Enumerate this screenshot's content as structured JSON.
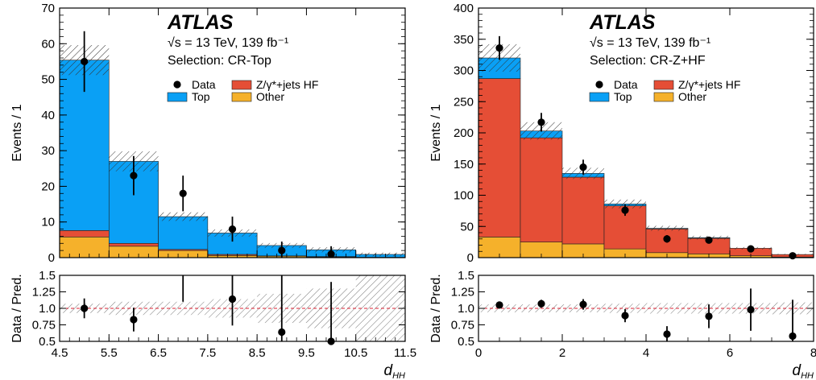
{
  "chart_data": [
    {
      "type": "bar",
      "stacked": true,
      "atlas_label": "ATLAS",
      "energy_label": "√s = 13 TeV, 139 fb⁻¹",
      "selection_label": "Selection: CR-Top",
      "xlabel": "d_HH",
      "ylabel": "Events / 1",
      "ratio_ylabel": "Data / Pred.",
      "xlim": [
        4.5,
        11.5
      ],
      "ylim": [
        0,
        70
      ],
      "ratio_ylim": [
        0.5,
        1.5
      ],
      "x_ticks": [
        "4.5",
        "5.5",
        "6.5",
        "7.5",
        "8.5",
        "9.5",
        "10.5",
        "11.5"
      ],
      "y_ticks": [
        "0",
        "10",
        "20",
        "30",
        "40",
        "50",
        "60",
        "70"
      ],
      "ratio_ticks": [
        "0.5",
        "0.75",
        "1.0",
        "1.25",
        "1.5"
      ],
      "bin_edges": [
        4.5,
        5.5,
        6.5,
        7.5,
        8.5,
        9.5,
        10.5,
        11.5
      ],
      "stack_order": [
        "Other",
        "Z/γ*+jets HF",
        "Top"
      ],
      "series": [
        {
          "name": "Other",
          "color": "#f5b12b",
          "values": [
            5.8,
            3.2,
            2.0,
            0.6,
            0.4,
            0.2,
            0.1
          ]
        },
        {
          "name": "Z/γ*+jets HF",
          "color": "#e54e36",
          "values": [
            1.8,
            0.8,
            0.3,
            0.3,
            0.1,
            0.1,
            0.0
          ]
        },
        {
          "name": "Top",
          "color": "#0aa0f5",
          "values": [
            47.8,
            23.0,
            9.2,
            6.0,
            2.9,
            1.9,
            0.8
          ]
        }
      ],
      "uncertainty": [
        4.2,
        2.8,
        1.2,
        1.0,
        0.7,
        0.7,
        0.5
      ],
      "data": {
        "x": [
          5.0,
          6.0,
          7.0,
          8.0,
          9.0,
          10.0
        ],
        "y": [
          55,
          23,
          18,
          8,
          2,
          1
        ],
        "err": [
          8.5,
          5.5,
          5.0,
          3.5,
          2.5,
          2.2
        ]
      },
      "ratio": {
        "x": [
          5.0,
          6.0,
          7.0,
          8.0,
          9.0,
          10.0
        ],
        "y": [
          1.0,
          0.83,
          1.55,
          1.14,
          0.64,
          0.5
        ],
        "err": [
          0.15,
          0.18,
          0.45,
          0.4,
          0.9,
          0.9
        ],
        "band": [
          0.07,
          0.1,
          0.1,
          0.14,
          0.22,
          0.3,
          0.6
        ]
      },
      "legend": [
        {
          "label": "Data",
          "kind": "marker"
        },
        {
          "label": "Z/γ*+jets HF",
          "kind": "fill",
          "color": "#e54e36"
        },
        {
          "label": "Top",
          "kind": "fill",
          "color": "#0aa0f5"
        },
        {
          "label": "Other",
          "kind": "fill",
          "color": "#f5b12b"
        }
      ]
    },
    {
      "type": "bar",
      "stacked": true,
      "atlas_label": "ATLAS",
      "energy_label": "√s = 13 TeV, 139 fb⁻¹",
      "selection_label": "Selection: CR-Z+HF",
      "xlabel": "d_HH",
      "ylabel": "Events / 1",
      "ratio_ylabel": "Data / Pred.",
      "xlim": [
        0,
        8
      ],
      "ylim": [
        0,
        400
      ],
      "ratio_ylim": [
        0.5,
        1.5
      ],
      "x_ticks": [
        "0",
        "2",
        "4",
        "6",
        "8"
      ],
      "y_ticks": [
        "0",
        "50",
        "100",
        "150",
        "200",
        "250",
        "300",
        "350",
        "400"
      ],
      "ratio_ticks": [
        "0.5",
        "0.75",
        "1.0",
        "1.25",
        "1.5"
      ],
      "bin_edges": [
        0,
        1,
        2,
        3,
        4,
        5,
        6,
        7,
        8
      ],
      "stack_order": [
        "Other",
        "Z/γ*+jets HF",
        "Top"
      ],
      "series": [
        {
          "name": "Other",
          "color": "#f5b12b",
          "values": [
            33,
            25,
            22,
            14,
            8,
            6,
            3,
            1
          ]
        },
        {
          "name": "Z/γ*+jets HF",
          "color": "#e54e36",
          "values": [
            254,
            167,
            107,
            69,
            38,
            25,
            12,
            4
          ]
        },
        {
          "name": "Top",
          "color": "#0aa0f5",
          "values": [
            33,
            11,
            6,
            3,
            1,
            1,
            0,
            0
          ]
        }
      ],
      "uncertainty": [
        22,
        14,
        9,
        7,
        4,
        3,
        2,
        1
      ],
      "data": {
        "x": [
          0.5,
          1.5,
          2.5,
          3.5,
          4.5,
          5.5,
          6.5,
          7.5
        ],
        "y": [
          336,
          217,
          145,
          76,
          30,
          28,
          14,
          3
        ],
        "err": [
          19,
          15,
          12,
          9,
          6,
          5,
          4,
          2
        ]
      },
      "ratio": {
        "x": [
          0.5,
          1.5,
          2.5,
          3.5,
          4.5,
          5.5,
          6.5,
          7.5
        ],
        "y": [
          1.05,
          1.07,
          1.06,
          0.89,
          0.61,
          0.88,
          0.98,
          0.58
        ],
        "err": [
          0.03,
          0.06,
          0.08,
          0.1,
          0.12,
          0.18,
          0.32,
          0.55
        ],
        "band": [
          0.06,
          0.06,
          0.06,
          0.07,
          0.08,
          0.08,
          0.08,
          0.09
        ]
      },
      "legend": [
        {
          "label": "Data",
          "kind": "marker"
        },
        {
          "label": "Z/γ*+jets HF",
          "kind": "fill",
          "color": "#e54e36"
        },
        {
          "label": "Top",
          "kind": "fill",
          "color": "#0aa0f5"
        },
        {
          "label": "Other",
          "kind": "fill",
          "color": "#f5b12b"
        }
      ]
    }
  ]
}
